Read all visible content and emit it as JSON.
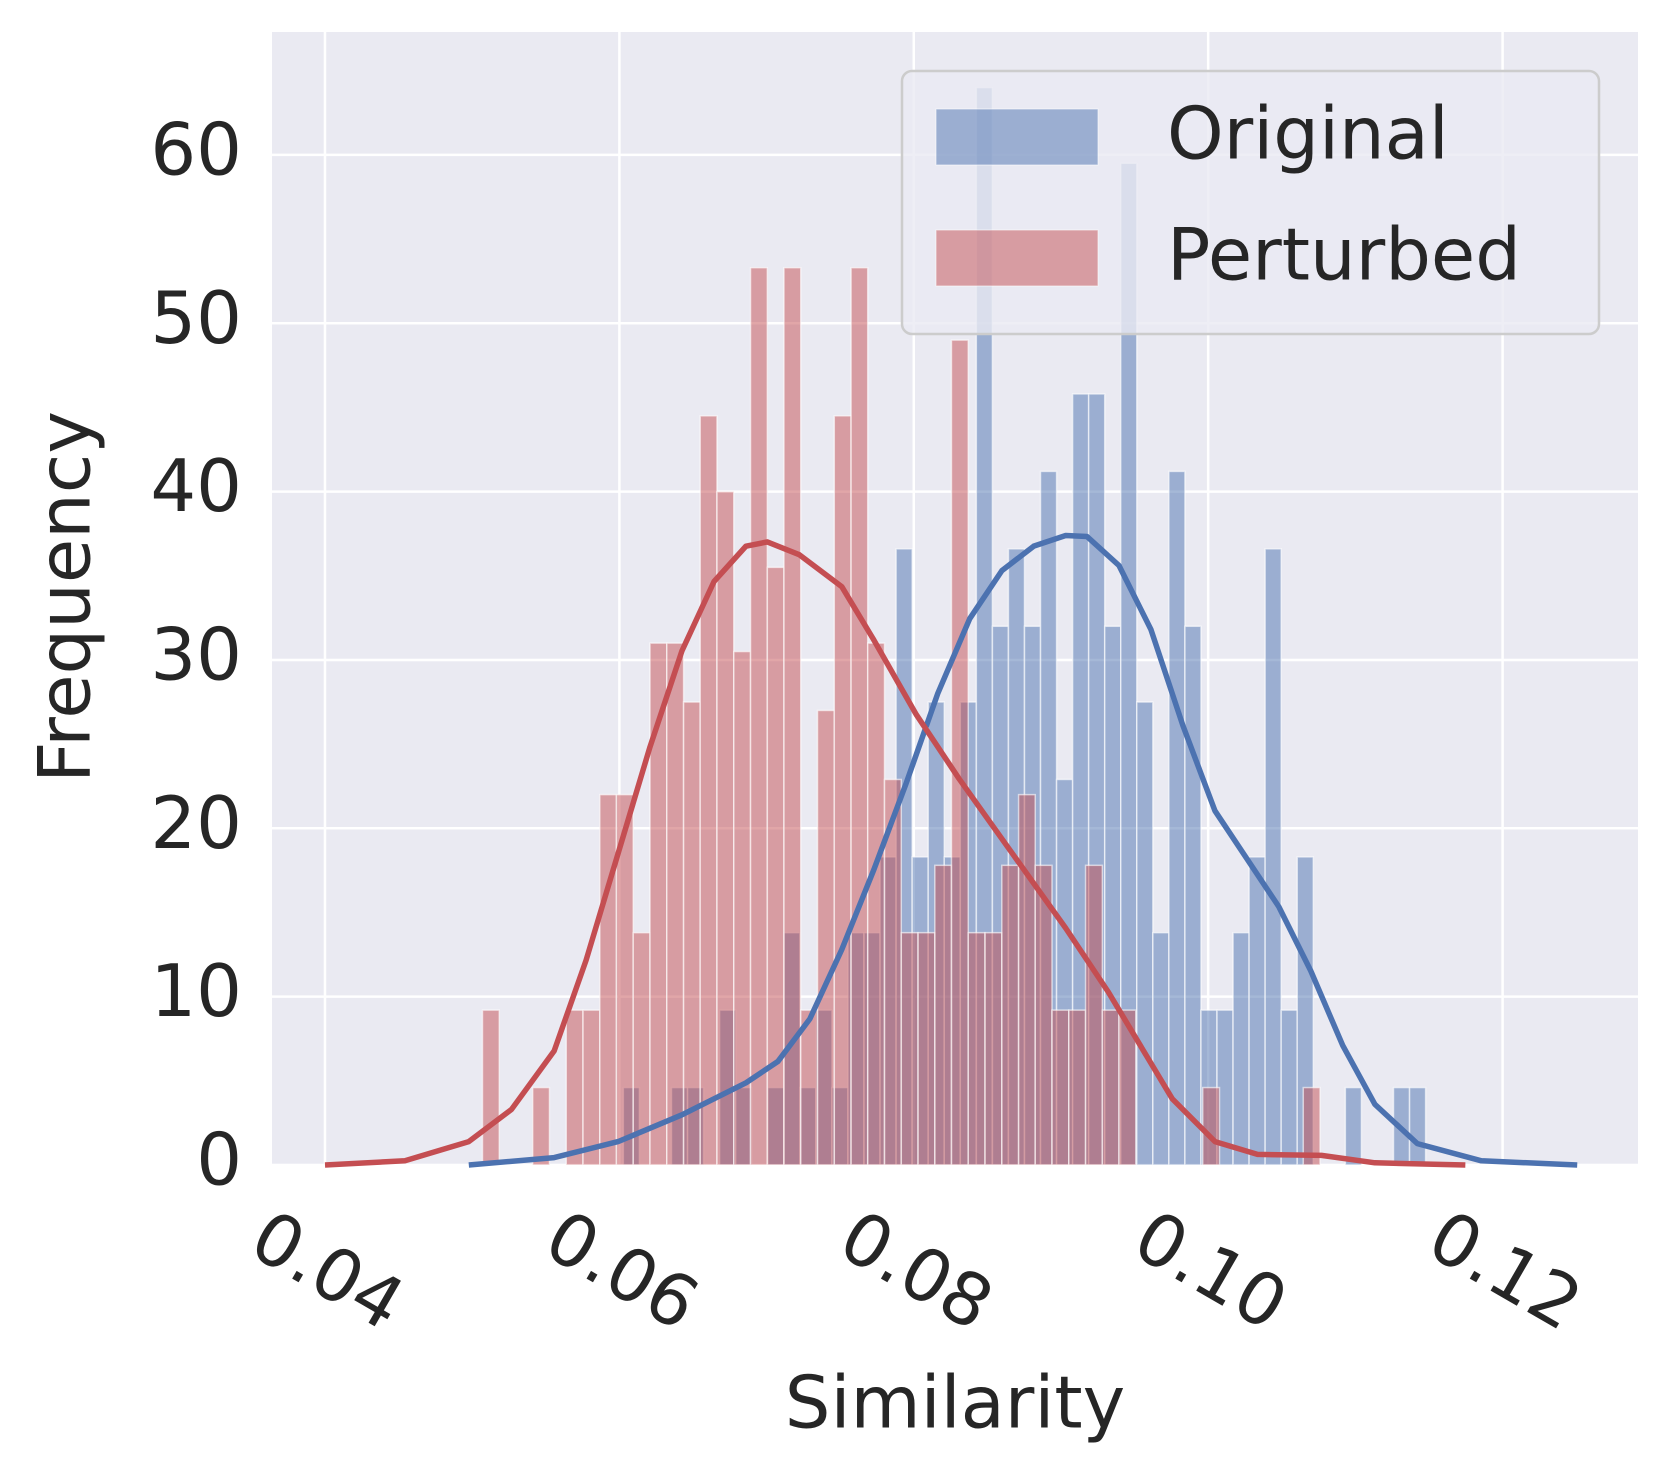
{
  "chart_data": {
    "type": "histogram",
    "x_label": "Similarity",
    "y_label": "Frequency",
    "xlim": [
      0.0364,
      0.1292
    ],
    "ylim": [
      0,
      67.3
    ],
    "xticks": [
      0.04,
      0.06,
      0.08,
      {
        "value": 0.1,
        "label": "0.10"
      },
      0.12
    ],
    "yticks": [
      0,
      10,
      20,
      30,
      40,
      50,
      60
    ],
    "grid": true,
    "legend_position": "upper right",
    "series": [
      {
        "name": "Original",
        "color": "#4c72b0",
        "bins": [
          0.06027,
          0.06136,
          0.06245,
          0.06354,
          0.06463,
          0.06572,
          0.06681,
          0.0679,
          0.06899,
          0.07008,
          0.07117,
          0.07226,
          0.07335,
          0.07444,
          0.07553,
          0.07662,
          0.07771,
          0.0788,
          0.07989,
          0.08098,
          0.08207,
          0.08316,
          0.08425,
          0.08534,
          0.08643,
          0.08752,
          0.08861,
          0.0897,
          0.09079,
          0.09188,
          0.09297,
          0.09406,
          0.09515,
          0.09624,
          0.09733,
          0.09842,
          0.09951,
          0.1006,
          0.10169,
          0.10278,
          0.10387,
          0.10496,
          0.10605,
          0.10714,
          0.10823,
          0.10932,
          0.11041,
          0.1115,
          0.11259,
          0.11368,
          0.11477
        ],
        "values": [
          4.6,
          0,
          0,
          4.6,
          4.6,
          0,
          9.2,
          4.6,
          0,
          4.6,
          13.8,
          4.6,
          9.2,
          4.6,
          13.8,
          13.8,
          18.3,
          36.6,
          18.3,
          27.5,
          18.3,
          27.5,
          64,
          32,
          36.6,
          32,
          41.2,
          22.9,
          45.8,
          45.8,
          32,
          59.5,
          27.5,
          13.8,
          41.2,
          32,
          9.2,
          9.2,
          13.8,
          18.3,
          36.6,
          9.2,
          18.3,
          0,
          0,
          4.6,
          0,
          0,
          4.6,
          4.6
        ],
        "kde": {
          "x": [
            0.04977,
            0.05557,
            0.05991,
            0.06425,
            0.0686,
            0.07077,
            0.07294,
            0.07511,
            0.07729,
            0.07946,
            0.08163,
            0.0838,
            0.08598,
            0.08815,
            0.09032,
            0.09177,
            0.09394,
            0.09611,
            0.09828,
            0.10046,
            0.10263,
            0.1048,
            0.10697,
            0.10914,
            0.11132,
            0.11421,
            0.11856,
            0.12507
          ],
          "values": [
            0,
            0.44,
            1.39,
            2.98,
            4.88,
            6.15,
            8.68,
            12.8,
            17.55,
            22.62,
            28.01,
            32.45,
            35.3,
            36.76,
            37.39,
            37.33,
            35.61,
            31.81,
            26.11,
            21.04,
            18.19,
            15.34,
            11.53,
            7.1,
            3.61,
            1.27,
            0.25,
            0
          ]
        }
      },
      {
        "name": "Perturbed",
        "color": "#c44e52",
        "bins": [
          0.0507,
          0.05184,
          0.05298,
          0.05411,
          0.05525,
          0.05639,
          0.05753,
          0.05867,
          0.0598,
          0.06094,
          0.06208,
          0.06322,
          0.06436,
          0.06549,
          0.06663,
          0.06777,
          0.06891,
          0.07005,
          0.07118,
          0.07232,
          0.07346,
          0.0746,
          0.07574,
          0.07687,
          0.07801,
          0.07915,
          0.08029,
          0.08143,
          0.08256,
          0.0837,
          0.08484,
          0.08598,
          0.08712,
          0.08825,
          0.08939,
          0.09053,
          0.09167,
          0.09281,
          0.09394,
          0.09508,
          0.09622,
          0.09736,
          0.0985,
          0.09963,
          0.10077,
          0.10191,
          0.10305,
          0.10419,
          0.10532,
          0.10646,
          0.1076
        ],
        "values": [
          9.2,
          0,
          0,
          4.6,
          0,
          9.2,
          9.2,
          22,
          22,
          13.8,
          31,
          31,
          27.5,
          44.5,
          40,
          30.5,
          53.3,
          35.5,
          53.3,
          9.2,
          27,
          44.5,
          53.3,
          31,
          22.9,
          13.8,
          13.8,
          17.8,
          49,
          13.8,
          13.8,
          17.8,
          22,
          17.8,
          9.2,
          9.2,
          17.8,
          9.2,
          9.2,
          0,
          0,
          0,
          0,
          4.6,
          0,
          0,
          0,
          0,
          0,
          4.6
        ],
        "kde": {
          "x": [
            0.04,
            0.04543,
            0.04977,
            0.05267,
            0.05557,
            0.05774,
            0.05991,
            0.06208,
            0.06425,
            0.06643,
            0.0686,
            0.07005,
            0.07222,
            0.07511,
            0.07729,
            0.08018,
            0.08308,
            0.0867,
            0.09032,
            0.09322,
            0.09539,
            0.09756,
            0.10046,
            0.10335,
            0.1077,
            0.11132,
            0.11747
          ],
          "values": [
            0,
            0.25,
            1.39,
            3.3,
            6.78,
            12.17,
            18.5,
            24.84,
            30.54,
            34.66,
            36.76,
            37.01,
            36.25,
            34.35,
            31.18,
            26.74,
            22.94,
            18.5,
            14.07,
            10.27,
            7.1,
            3.93,
            1.39,
            0.63,
            0.57,
            0.13,
            0
          ]
        }
      }
    ]
  }
}
